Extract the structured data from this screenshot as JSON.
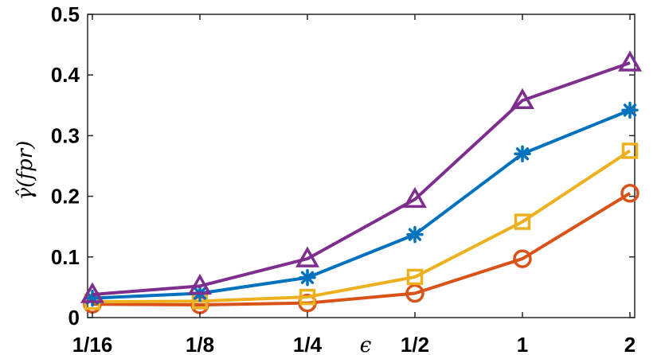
{
  "chart_data": {
    "type": "line",
    "title": "",
    "xlabel": "ϵ",
    "ylabel": "γ̂(fpr)",
    "categories": [
      "1/16",
      "1/8",
      "1/4",
      "1/2",
      "1",
      "2"
    ],
    "x_scale": "log2",
    "ylim": [
      0,
      0.5
    ],
    "yticks": [
      "0",
      "0.1",
      "0.2",
      "0.3",
      "0.4",
      "0.5"
    ],
    "grid": false,
    "legend": "none",
    "series": [
      {
        "color": "#7E2F8E",
        "marker": "triangle",
        "values": [
          0.038,
          0.052,
          0.097,
          0.195,
          0.358,
          0.42
        ]
      },
      {
        "color": "#0072BD",
        "marker": "asterisk",
        "values": [
          0.032,
          0.04,
          0.066,
          0.137,
          0.27,
          0.342
        ]
      },
      {
        "color": "#EDB120",
        "marker": "square",
        "values": [
          0.026,
          0.027,
          0.034,
          0.067,
          0.158,
          0.275
        ]
      },
      {
        "color": "#D95319",
        "marker": "circle",
        "values": [
          0.022,
          0.021,
          0.024,
          0.04,
          0.097,
          0.205
        ]
      }
    ]
  }
}
